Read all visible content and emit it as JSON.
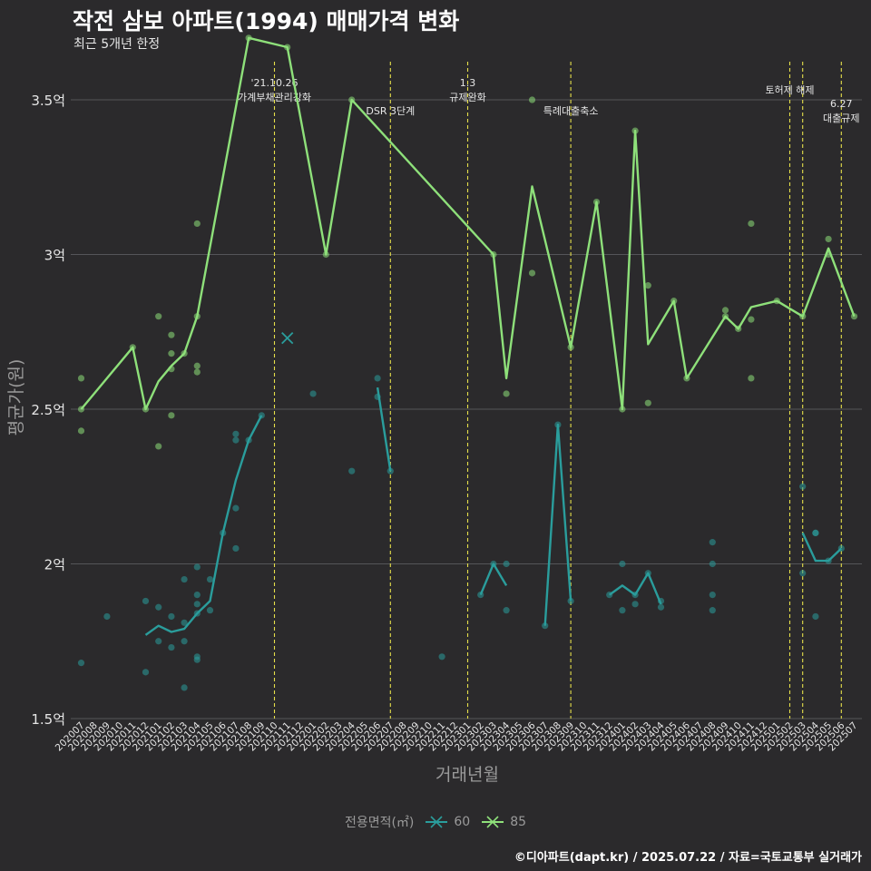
{
  "header": {
    "title": "작전 삼보 아파트(1994) 매매가격 변화",
    "subtitle": "최근 5개년 한정"
  },
  "footer": {
    "caption": "©디아파트(dapt.kr) / 2025.07.22 / 자료=국토교통부 실거래가"
  },
  "legend": {
    "title": "전용면적(㎡)",
    "items": [
      {
        "label": "60",
        "color": "#2a9d9c"
      },
      {
        "label": "85",
        "color": "#8ee07a"
      }
    ]
  },
  "chart_data": {
    "type": "line",
    "xlabel": "거래년월",
    "ylabel": "평균가(원)",
    "ylim": [
      1.5,
      3.72
    ],
    "yticks": [
      {
        "value": 1.5,
        "label": "1.5억"
      },
      {
        "value": 2.0,
        "label": "2억"
      },
      {
        "value": 2.5,
        "label": "2.5억"
      },
      {
        "value": 3.0,
        "label": "3억"
      },
      {
        "value": 3.5,
        "label": "3.5억"
      }
    ],
    "categories": [
      "202007",
      "202008",
      "202009",
      "202010",
      "202011",
      "202012",
      "202101",
      "202102",
      "202103",
      "202104",
      "202105",
      "202106",
      "202107",
      "202108",
      "202109",
      "202110",
      "202111",
      "202112",
      "202201",
      "202202",
      "202203",
      "202204",
      "202205",
      "202206",
      "202207",
      "202208",
      "202209",
      "202210",
      "202211",
      "202212",
      "202301",
      "202302",
      "202303",
      "202304",
      "202305",
      "202306",
      "202307",
      "202308",
      "202309",
      "202310",
      "202311",
      "202312",
      "202401",
      "202402",
      "202403",
      "202404",
      "202405",
      "202406",
      "202407",
      "202408",
      "202409",
      "202410",
      "202411",
      "202412",
      "202501",
      "202502",
      "202503",
      "202504",
      "202505",
      "202506",
      "202507"
    ],
    "series": [
      {
        "name": "60",
        "color": "#2a9d9c",
        "segments": [
          [
            [
              "202012",
              1.77
            ],
            [
              "202101",
              1.8
            ],
            [
              "202102",
              1.78
            ],
            [
              "202103",
              1.79
            ],
            [
              "202104",
              1.84
            ],
            [
              "202105",
              1.88
            ],
            [
              "202106",
              2.1
            ],
            [
              "202107",
              2.27
            ],
            [
              "202108",
              2.4
            ],
            [
              "202109",
              2.48
            ]
          ],
          [
            [
              "202206",
              2.57
            ],
            [
              "202207",
              2.3
            ]
          ],
          [
            [
              "202302",
              1.9
            ],
            [
              "202303",
              2.0
            ],
            [
              "202304",
              1.93
            ]
          ],
          [
            [
              "202307",
              1.8
            ],
            [
              "202308",
              2.45
            ],
            [
              "202309",
              1.88
            ]
          ],
          [
            [
              "202312",
              1.9
            ],
            [
              "202401",
              1.93
            ],
            [
              "202402",
              1.9
            ],
            [
              "202403",
              1.97
            ],
            [
              "202404",
              1.87
            ]
          ],
          [
            [
              "202503",
              2.1
            ],
            [
              "202504",
              2.01
            ],
            [
              "202505",
              2.01
            ],
            [
              "202506",
              2.05
            ]
          ]
        ],
        "points": [
          [
            "202007",
            1.68
          ],
          [
            "202009",
            1.83
          ],
          [
            "202012",
            1.88
          ],
          [
            "202012",
            1.65
          ],
          [
            "202101",
            1.86
          ],
          [
            "202101",
            1.75
          ],
          [
            "202102",
            1.83
          ],
          [
            "202102",
            1.73
          ],
          [
            "202103",
            1.95
          ],
          [
            "202103",
            1.81
          ],
          [
            "202103",
            1.75
          ],
          [
            "202103",
            1.6
          ],
          [
            "202104",
            1.99
          ],
          [
            "202104",
            1.9
          ],
          [
            "202104",
            1.87
          ],
          [
            "202104",
            1.84
          ],
          [
            "202104",
            1.7
          ],
          [
            "202104",
            1.69
          ],
          [
            "202105",
            1.95
          ],
          [
            "202105",
            1.85
          ],
          [
            "202106",
            2.1
          ],
          [
            "202107",
            2.42
          ],
          [
            "202107",
            2.4
          ],
          [
            "202107",
            2.18
          ],
          [
            "202107",
            2.05
          ],
          [
            "202108",
            2.4
          ],
          [
            "202109",
            2.48
          ],
          [
            "202201",
            2.55
          ],
          [
            "202204",
            2.3
          ],
          [
            "202206",
            2.6
          ],
          [
            "202206",
            2.54
          ],
          [
            "202207",
            2.3
          ],
          [
            "202211",
            1.7
          ],
          [
            "202302",
            1.9
          ],
          [
            "202303",
            2.0
          ],
          [
            "202304",
            2.0
          ],
          [
            "202304",
            1.85
          ],
          [
            "202307",
            1.8
          ],
          [
            "202308",
            2.45
          ],
          [
            "202309",
            1.88
          ],
          [
            "202312",
            1.9
          ],
          [
            "202401",
            2.0
          ],
          [
            "202401",
            1.85
          ],
          [
            "202402",
            1.9
          ],
          [
            "202402",
            1.87
          ],
          [
            "202403",
            1.97
          ],
          [
            "202404",
            1.88
          ],
          [
            "202404",
            1.86
          ],
          [
            "202408",
            2.07
          ],
          [
            "202408",
            2.0
          ],
          [
            "202408",
            1.9
          ],
          [
            "202408",
            1.85
          ],
          [
            "202503",
            2.25
          ],
          [
            "202503",
            1.97
          ],
          [
            "202504",
            2.1
          ],
          [
            "202504",
            2.1
          ],
          [
            "202504",
            1.83
          ],
          [
            "202505",
            2.01
          ],
          [
            "202506",
            2.05
          ]
        ],
        "cross_markers": [
          [
            "202111",
            2.73
          ]
        ]
      },
      {
        "name": "85",
        "color": "#8ee07a",
        "segments": [
          [
            [
              "202007",
              2.5
            ],
            [
              "202011",
              2.7
            ],
            [
              "202012",
              2.5
            ],
            [
              "202101",
              2.59
            ],
            [
              "202102",
              2.64
            ],
            [
              "202103",
              2.68
            ],
            [
              "202104",
              2.8
            ],
            [
              "202108",
              3.7
            ],
            [
              "202111",
              3.67
            ],
            [
              "202202",
              3.0
            ],
            [
              "202204",
              3.5
            ],
            [
              "202303",
              3.0
            ],
            [
              "202304",
              2.6
            ],
            [
              "202306",
              3.22
            ],
            [
              "202309",
              2.7
            ],
            [
              "202311",
              3.17
            ],
            [
              "202401",
              2.5
            ],
            [
              "202402",
              3.4
            ],
            [
              "202403",
              2.71
            ],
            [
              "202405",
              2.85
            ],
            [
              "202406",
              2.6
            ],
            [
              "202409",
              2.8
            ],
            [
              "202410",
              2.76
            ],
            [
              "202411",
              2.83
            ],
            [
              "202501",
              2.85
            ],
            [
              "202503",
              2.8
            ],
            [
              "202505",
              3.02
            ],
            [
              "202507",
              2.8
            ]
          ]
        ],
        "points": [
          [
            "202007",
            2.6
          ],
          [
            "202007",
            2.5
          ],
          [
            "202007",
            2.43
          ],
          [
            "202011",
            2.7
          ],
          [
            "202012",
            2.5
          ],
          [
            "202101",
            2.8
          ],
          [
            "202101",
            2.38
          ],
          [
            "202102",
            2.74
          ],
          [
            "202102",
            2.68
          ],
          [
            "202102",
            2.63
          ],
          [
            "202102",
            2.48
          ],
          [
            "202103",
            2.68
          ],
          [
            "202104",
            3.1
          ],
          [
            "202104",
            2.8
          ],
          [
            "202104",
            2.64
          ],
          [
            "202104",
            2.62
          ],
          [
            "202108",
            3.7
          ],
          [
            "202111",
            3.67
          ],
          [
            "202202",
            3.0
          ],
          [
            "202204",
            3.5
          ],
          [
            "202303",
            3.0
          ],
          [
            "202304",
            2.55
          ],
          [
            "202306",
            3.5
          ],
          [
            "202306",
            2.94
          ],
          [
            "202309",
            2.7
          ],
          [
            "202311",
            3.17
          ],
          [
            "202401",
            2.5
          ],
          [
            "202402",
            3.4
          ],
          [
            "202403",
            2.9
          ],
          [
            "202403",
            2.52
          ],
          [
            "202405",
            2.85
          ],
          [
            "202406",
            2.6
          ],
          [
            "202409",
            2.82
          ],
          [
            "202409",
            2.8
          ],
          [
            "202410",
            2.76
          ],
          [
            "202411",
            3.1
          ],
          [
            "202411",
            2.79
          ],
          [
            "202411",
            2.6
          ],
          [
            "202501",
            2.85
          ],
          [
            "202503",
            2.8
          ],
          [
            "202505",
            3.05
          ],
          [
            "202505",
            3.0
          ],
          [
            "202507",
            2.8
          ]
        ]
      }
    ],
    "annotations": [
      {
        "x": "202110",
        "lines": [
          "'21.10.26",
          "가계부채관리강화"
        ]
      },
      {
        "x": "202207",
        "lines": [
          "DSR 3단계"
        ]
      },
      {
        "x": "202301",
        "lines": [
          "1.3",
          "규제완화"
        ]
      },
      {
        "x": "202309",
        "lines": [
          "특례대출축소"
        ]
      },
      {
        "x": "202502",
        "lines": [
          "토허제 해제"
        ]
      },
      {
        "x": "202503",
        "lines": []
      },
      {
        "x": "202506",
        "lines": [
          "6.27",
          "대출규제"
        ]
      }
    ]
  }
}
